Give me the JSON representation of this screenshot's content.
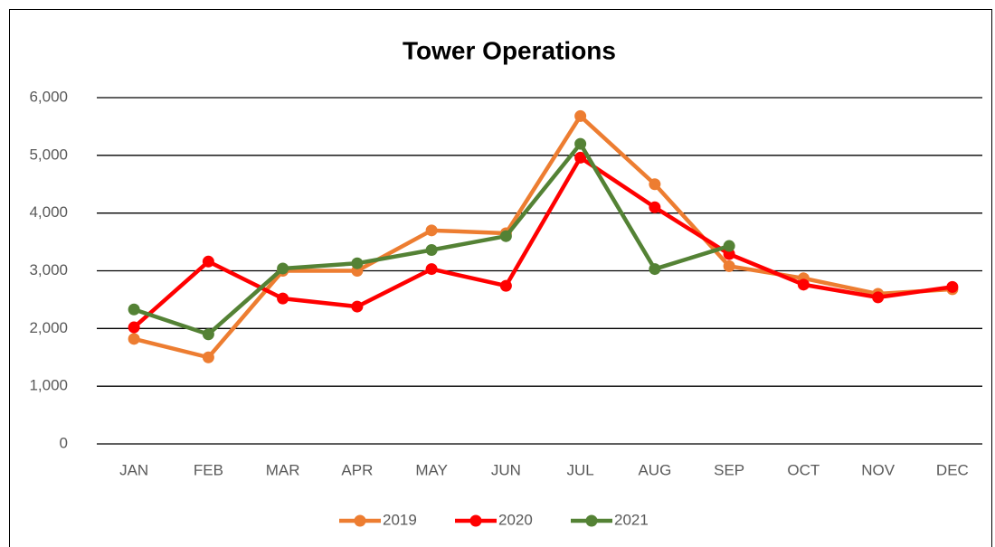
{
  "chart_data": {
    "type": "line",
    "title": "Tower Operations",
    "categories": [
      "JAN",
      "FEB",
      "MAR",
      "APR",
      "MAY",
      "JUN",
      "JUL",
      "AUG",
      "SEP",
      "OCT",
      "NOV",
      "DEC"
    ],
    "series": [
      {
        "name": "2019",
        "color": "#ED7D31",
        "values": [
          1820,
          1500,
          3000,
          3000,
          3700,
          3650,
          5680,
          4500,
          3080,
          2870,
          2600,
          2680
        ]
      },
      {
        "name": "2020",
        "color": "#FF0000",
        "values": [
          2020,
          3160,
          2520,
          2380,
          3030,
          2740,
          4960,
          4100,
          3290,
          2760,
          2540,
          2720
        ]
      },
      {
        "name": "2021",
        "color": "#548235",
        "values": [
          2330,
          1900,
          3040,
          3130,
          3360,
          3600,
          5200,
          3030,
          3430,
          null,
          null,
          null
        ]
      }
    ],
    "ylim": [
      0,
      6000
    ],
    "yticks": [
      0,
      {
        "value": 1000,
        "label": "1,000"
      },
      {
        "value": 2000,
        "label": "2,000"
      },
      {
        "value": 3000,
        "label": "3,000"
      },
      {
        "value": 4000,
        "label": "4,000"
      },
      {
        "value": 5000,
        "label": "5,000"
      },
      {
        "value": 6000,
        "label": "6,000"
      }
    ],
    "grid": true,
    "legend": "bottom"
  }
}
